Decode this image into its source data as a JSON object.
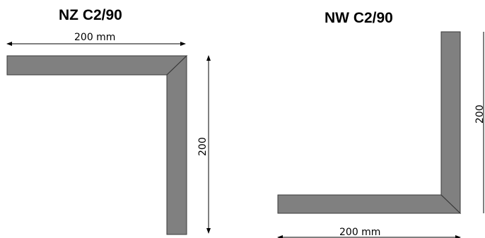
{
  "profiles": [
    {
      "title": "NZ C2/90",
      "width_label": "200 mm",
      "height_label": "200"
    },
    {
      "title": "NW C2/90",
      "width_label": "200 mm",
      "height_label": "200"
    }
  ],
  "colors": {
    "profile_fill": "#808080",
    "profile_stroke": "#3a3a3a",
    "dimension_line": "#000000"
  }
}
